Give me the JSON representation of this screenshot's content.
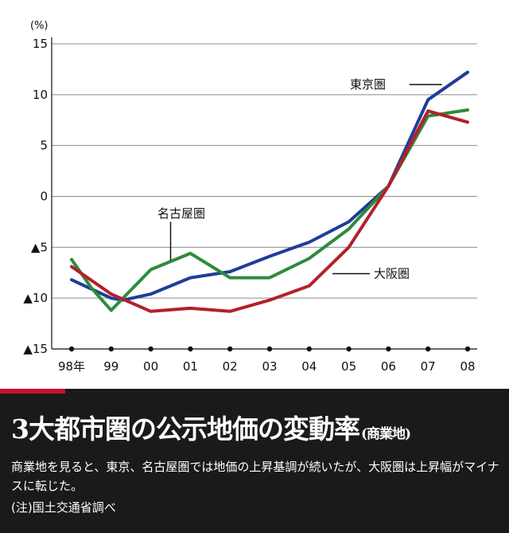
{
  "chart_data": {
    "type": "line",
    "unit_label": "(%)",
    "categories": [
      "98年",
      "99",
      "00",
      "01",
      "02",
      "03",
      "04",
      "05",
      "06",
      "07",
      "08"
    ],
    "y_ticks": [
      "15",
      "10",
      "5",
      "0",
      "▲5",
      "▲10",
      "▲15"
    ],
    "ylim": [
      -15,
      15
    ],
    "grid": true,
    "series": [
      {
        "name": "東京圏",
        "color": "#1f3d99",
        "x": [
          0,
          1,
          1.3,
          2,
          3,
          4,
          5,
          6,
          7,
          8,
          9,
          10
        ],
        "values": [
          -8.2,
          -10.0,
          -10.2,
          -9.6,
          -8.0,
          -7.4,
          -5.9,
          -4.5,
          -2.5,
          1.0,
          9.5,
          12.2
        ]
      },
      {
        "name": "名古屋圏",
        "color": "#2e8b3a",
        "x": [
          0,
          0.5,
          1,
          2,
          3,
          3.5,
          4,
          5,
          6,
          7,
          8,
          9,
          10
        ],
        "values": [
          -6.2,
          -9.0,
          -11.2,
          -7.2,
          -5.6,
          -6.8,
          -8.0,
          -8.0,
          -6.1,
          -3.2,
          1.0,
          7.9,
          8.5
        ]
      },
      {
        "name": "大阪圏",
        "color": "#b2202c",
        "x": [
          0,
          1,
          2,
          3,
          4,
          5,
          6,
          7,
          8,
          9,
          10
        ],
        "values": [
          -6.9,
          -9.6,
          -11.3,
          -11.0,
          -11.3,
          -10.2,
          -8.8,
          -5.0,
          1.0,
          8.4,
          7.3
        ]
      }
    ]
  },
  "caption": {
    "title": "3大都市圏の公示地価の変動率",
    "subtitle": "(商業地)",
    "body": "商業地を見ると、東京、名古屋圏では地価の上昇基調が続いたが、大阪圏は上昇幅がマイナスに転じた。",
    "note": "(注)国土交通省調べ",
    "background_color": "#1a1a1a",
    "accent_color": "#c8102e"
  }
}
